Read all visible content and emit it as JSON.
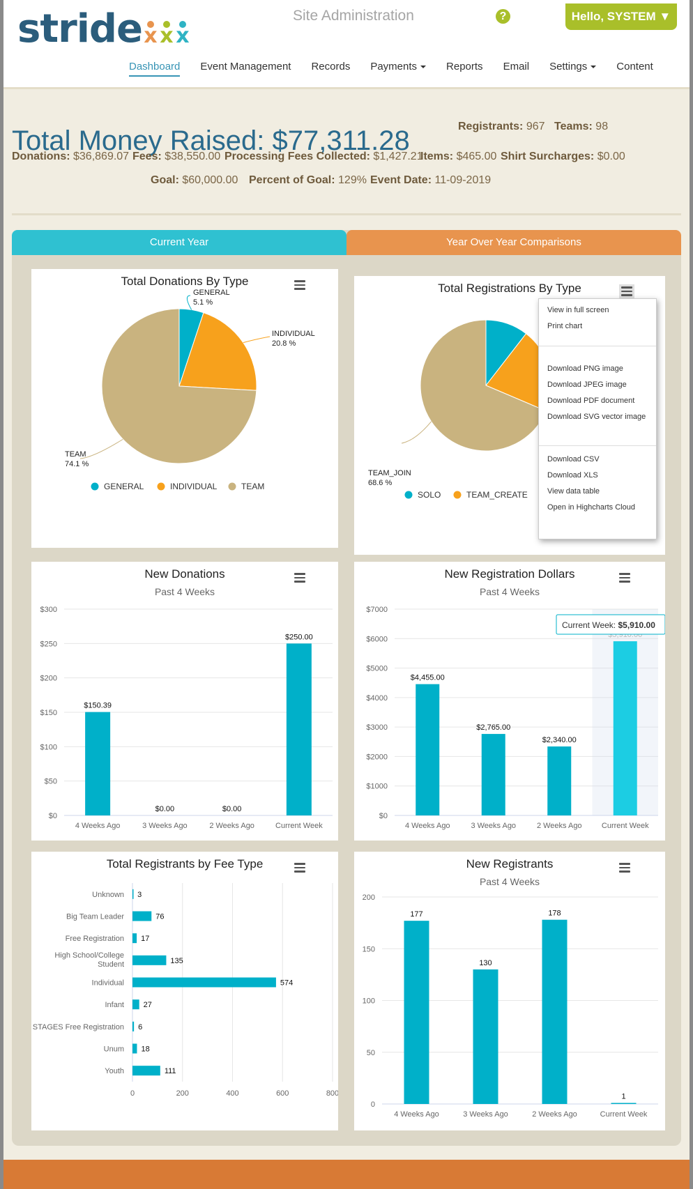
{
  "header": {
    "logo_text": "stride",
    "site_title": "Site Administration",
    "help_icon": "question-circle-icon",
    "user_button": "Hello, SYSTEM ▼",
    "nav": [
      {
        "label": "Dashboard",
        "active": true,
        "caret": false
      },
      {
        "label": "Event Management",
        "active": false,
        "caret": false
      },
      {
        "label": "Records",
        "active": false,
        "caret": false
      },
      {
        "label": "Payments",
        "active": false,
        "caret": true
      },
      {
        "label": "Reports",
        "active": false,
        "caret": false
      },
      {
        "label": "Email",
        "active": false,
        "caret": false
      },
      {
        "label": "Settings",
        "active": false,
        "caret": true
      },
      {
        "label": "Content",
        "active": false,
        "caret": false
      }
    ]
  },
  "summary": {
    "total_label": "Total Money Raised: ",
    "total_value": "$77,311.28",
    "registrants_label": "Registrants:",
    "registrants_value": "967",
    "teams_label": "Teams:",
    "teams_value": "98",
    "donations_label": "Donations:",
    "donations_value": "$36,869.07",
    "fees_label": "Fees:",
    "fees_value": "$38,550.00",
    "processing_label": "Processing Fees Collected:",
    "processing_value": "$1,427.21",
    "items_label": "Items:",
    "items_value": "$465.00",
    "shirt_label": "Shirt Surcharges:",
    "shirt_value": "$0.00",
    "goal_label": "Goal:",
    "goal_value": "$60,000.00",
    "percent_label": "Percent of Goal:",
    "percent_value": "129%",
    "date_label": "Event Date:",
    "date_value": "11-09-2019"
  },
  "tabs": {
    "current": "Current Year",
    "yoy": "Year Over Year Comparisons"
  },
  "context_menu": {
    "items": [
      "View in full screen",
      "Print chart",
      "Download PNG image",
      "Download JPEG image",
      "Download PDF document",
      "Download SVG vector image",
      "Download CSV",
      "Download XLS",
      "View data table",
      "Open in Highcharts Cloud"
    ]
  },
  "colors": {
    "teal": "#00b0c9",
    "orange": "#f7a11c",
    "tan": "#c9b37f",
    "hover_bar": "#1ccde3"
  },
  "chart_data": [
    {
      "id": "donations-by-type",
      "type": "pie",
      "title": "Total Donations By Type",
      "slices": [
        {
          "name": "GENERAL",
          "label": "5.1 %",
          "value": 5.1,
          "color": "#00b0c9"
        },
        {
          "name": "INDIVIDUAL",
          "label": "20.8 %",
          "value": 20.8,
          "color": "#f7a11c"
        },
        {
          "name": "TEAM",
          "label": "74.1 %",
          "value": 74.1,
          "color": "#c9b37f"
        }
      ],
      "legend": [
        "GENERAL",
        "INDIVIDUAL",
        "TEAM"
      ],
      "legend_placement": "bottom"
    },
    {
      "id": "registrations-by-type",
      "type": "pie",
      "title": "Total Registrations By Type",
      "slices": [
        {
          "name": "SOLO",
          "label": "",
          "value": 10.5,
          "color": "#00b0c9"
        },
        {
          "name": "TEAM_CREATE",
          "label": "",
          "value": 20.9,
          "color": "#f7a11c"
        },
        {
          "name": "TEAM_JOIN",
          "label": "68.6 %",
          "value": 68.6,
          "color": "#c9b37f"
        }
      ],
      "legend": [
        "SOLO",
        "TEAM_CREATE"
      ],
      "legend_placement": "bottom"
    },
    {
      "id": "new-donations",
      "type": "bar",
      "title": "New Donations",
      "subtitle": "Past 4 Weeks",
      "categories": [
        "4 Weeks Ago",
        "3 Weeks Ago",
        "2 Weeks Ago",
        "Current Week"
      ],
      "values": [
        150.39,
        0,
        0,
        250
      ],
      "data_labels": [
        "$150.39",
        "$0.00",
        "$0.00",
        "$250.00"
      ],
      "yticks": [
        "$0",
        "$50",
        "$100",
        "$150",
        "$200",
        "$250",
        "$300"
      ],
      "ylim": [
        0,
        300
      ],
      "grid": true
    },
    {
      "id": "new-registration-dollars",
      "type": "bar",
      "title": "New Registration Dollars",
      "subtitle": "Past 4 Weeks",
      "categories": [
        "4 Weeks Ago",
        "3 Weeks Ago",
        "2 Weeks Ago",
        "Current Week"
      ],
      "values": [
        4455,
        2765,
        2340,
        5910
      ],
      "data_labels": [
        "$4,455.00",
        "$2,765.00",
        "$2,340.00",
        "$5,910.00"
      ],
      "yticks": [
        "$0",
        "$1000",
        "$2000",
        "$3000",
        "$4000",
        "$5000",
        "$6000",
        "$7000"
      ],
      "ylim": [
        0,
        7000
      ],
      "grid": true,
      "tooltip": {
        "label": "Current Week: ",
        "value": "$5,910.00"
      }
    },
    {
      "id": "registrants-by-fee-type",
      "type": "bar",
      "orientation": "horizontal",
      "title": "Total Registrants by Fee Type",
      "categories": [
        "Unknown",
        "Big Team Leader",
        "Free Registration",
        "High School/College Student",
        "Individual",
        "Infant",
        "STAGES Free Registration",
        "Unum",
        "Youth"
      ],
      "values": [
        3,
        76,
        17,
        135,
        574,
        27,
        6,
        18,
        111
      ],
      "xticks": [
        "0",
        "200",
        "400",
        "600",
        "800"
      ],
      "xlim": [
        0,
        800
      ],
      "grid": true
    },
    {
      "id": "new-registrants",
      "type": "bar",
      "title": "New Registrants",
      "subtitle": "Past 4 Weeks",
      "categories": [
        "4 Weeks Ago",
        "3 Weeks Ago",
        "2 Weeks Ago",
        "Current Week"
      ],
      "values": [
        177,
        130,
        178,
        1
      ],
      "data_labels": [
        "177",
        "130",
        "178",
        "1"
      ],
      "yticks": [
        "0",
        "50",
        "100",
        "150",
        "200"
      ],
      "ylim": [
        0,
        200
      ],
      "grid": true
    }
  ]
}
